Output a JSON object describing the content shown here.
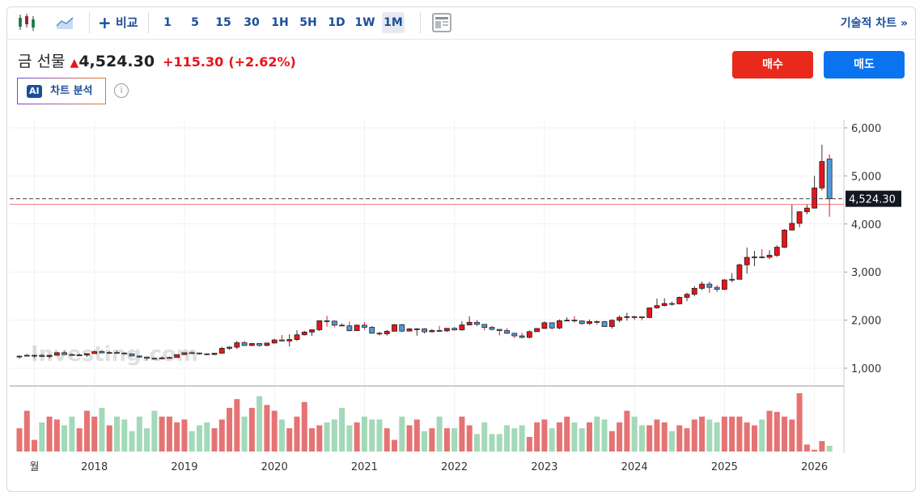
{
  "toolbar": {
    "compare": "비교",
    "intervals": [
      "1",
      "5",
      "15",
      "30",
      "1H",
      "5H",
      "1D",
      "1W",
      "1M"
    ],
    "active_interval": 8,
    "technical": "기술적 차트 »"
  },
  "header": {
    "name": "금 선물",
    "price": "4,524.30",
    "change": "+115.30",
    "change_pct": "(+2.62%)",
    "ai_badge": "AI",
    "ai_label": "차트 분석",
    "buy": "매수",
    "sell": "매도"
  },
  "chart_data": {
    "type": "candlestick",
    "watermark": "Investing.com",
    "up_color": "#e8141c",
    "down_color": "#4f9bd6",
    "volume_up_color": "#e57373",
    "volume_down_color": "#a3d9b8",
    "ylim": [
      646,
      6168
    ],
    "yticks": [
      {
        "value": 1000,
        "label": "1,000"
      },
      {
        "value": 2000,
        "label": "2,000"
      },
      {
        "value": 3000,
        "label": "3,000"
      },
      {
        "value": 4000,
        "label": "4,000"
      },
      {
        "value": 5000,
        "label": "5,000"
      },
      {
        "value": 6000,
        "label": "6,000"
      }
    ],
    "xticks": [
      {
        "value": 2,
        "label": "월"
      },
      {
        "value": 10,
        "label": "2018"
      },
      {
        "value": 22,
        "label": "2019"
      },
      {
        "value": 34,
        "label": "2020"
      },
      {
        "value": 46,
        "label": "2021"
      },
      {
        "value": 58,
        "label": "2022"
      },
      {
        "value": 70,
        "label": "2023"
      },
      {
        "value": 82,
        "label": "2024"
      },
      {
        "value": 94,
        "label": "2025"
      },
      {
        "value": 106,
        "label": "2026"
      }
    ],
    "last_price": {
      "value": 4524.3,
      "label": "4,524.30"
    },
    "previous_close": 4409,
    "candles": [
      [
        1248,
        1265,
        1195,
        1250
      ],
      [
        1250,
        1295,
        1245,
        1268
      ],
      [
        1268,
        1272,
        1215,
        1268
      ],
      [
        1268,
        1296,
        1238,
        1242
      ],
      [
        1242,
        1274,
        1205,
        1269
      ],
      [
        1269,
        1331,
        1261,
        1322
      ],
      [
        1322,
        1358,
        1275,
        1283
      ],
      [
        1283,
        1308,
        1262,
        1271
      ],
      [
        1271,
        1299,
        1264,
        1275
      ],
      [
        1275,
        1310,
        1238,
        1303
      ],
      [
        1303,
        1366,
        1303,
        1343
      ],
      [
        1343,
        1365,
        1307,
        1318
      ],
      [
        1318,
        1356,
        1303,
        1325
      ],
      [
        1325,
        1369,
        1314,
        1315
      ],
      [
        1315,
        1326,
        1282,
        1298
      ],
      [
        1298,
        1309,
        1251,
        1253
      ],
      [
        1253,
        1266,
        1211,
        1232
      ],
      [
        1232,
        1237,
        1160,
        1206
      ],
      [
        1206,
        1214,
        1180,
        1196
      ],
      [
        1196,
        1243,
        1182,
        1215
      ],
      [
        1215,
        1241,
        1196,
        1222
      ],
      [
        1222,
        1285,
        1221,
        1282
      ],
      [
        1282,
        1326,
        1277,
        1321
      ],
      [
        1321,
        1349,
        1311,
        1316
      ],
      [
        1316,
        1326,
        1281,
        1298
      ],
      [
        1298,
        1310,
        1267,
        1285
      ],
      [
        1285,
        1311,
        1268,
        1311
      ],
      [
        1311,
        1442,
        1306,
        1413
      ],
      [
        1413,
        1453,
        1381,
        1437
      ],
      [
        1437,
        1566,
        1400,
        1529
      ],
      [
        1529,
        1566,
        1465,
        1472
      ],
      [
        1472,
        1519,
        1459,
        1513
      ],
      [
        1513,
        1516,
        1445,
        1473
      ],
      [
        1473,
        1525,
        1454,
        1523
      ],
      [
        1523,
        1613,
        1517,
        1587
      ],
      [
        1587,
        1691,
        1563,
        1566
      ],
      [
        1566,
        1704,
        1451,
        1596
      ],
      [
        1596,
        1788,
        1567,
        1694
      ],
      [
        1694,
        1775,
        1680,
        1751
      ],
      [
        1751,
        1796,
        1671,
        1800
      ],
      [
        1800,
        1992,
        1772,
        1986
      ],
      [
        1986,
        2089,
        1863,
        1978
      ],
      [
        1978,
        1992,
        1849,
        1895
      ],
      [
        1895,
        1933,
        1873,
        1880
      ],
      [
        1880,
        1966,
        1764,
        1780
      ],
      [
        1780,
        1907,
        1776,
        1895
      ],
      [
        1895,
        1959,
        1802,
        1850
      ],
      [
        1850,
        1875,
        1717,
        1728
      ],
      [
        1728,
        1755,
        1677,
        1715
      ],
      [
        1715,
        1797,
        1679,
        1768
      ],
      [
        1768,
        1917,
        1766,
        1905
      ],
      [
        1905,
        1919,
        1750,
        1771
      ],
      [
        1771,
        1835,
        1766,
        1817
      ],
      [
        1817,
        1834,
        1677,
        1818
      ],
      [
        1818,
        1836,
        1721,
        1757
      ],
      [
        1757,
        1813,
        1746,
        1784
      ],
      [
        1784,
        1878,
        1759,
        1776
      ],
      [
        1776,
        1832,
        1753,
        1829
      ],
      [
        1829,
        1856,
        1781,
        1796
      ],
      [
        1796,
        1976,
        1780,
        1900
      ],
      [
        1900,
        2078,
        1890,
        1954
      ],
      [
        1954,
        2003,
        1872,
        1911
      ],
      [
        1911,
        1916,
        1786,
        1848
      ],
      [
        1848,
        1880,
        1785,
        1807
      ],
      [
        1807,
        1814,
        1681,
        1782
      ],
      [
        1782,
        1832,
        1712,
        1726
      ],
      [
        1726,
        1735,
        1626,
        1672
      ],
      [
        1672,
        1734,
        1618,
        1640
      ],
      [
        1640,
        1787,
        1618,
        1759
      ],
      [
        1759,
        1834,
        1756,
        1826
      ],
      [
        1826,
        1976,
        1823,
        1945
      ],
      [
        1945,
        1952,
        1809,
        1836
      ],
      [
        1836,
        2014,
        1810,
        1986
      ],
      [
        1986,
        2058,
        1972,
        1999
      ],
      [
        1999,
        2085,
        1946,
        1982
      ],
      [
        1982,
        1990,
        1900,
        1929
      ],
      [
        1929,
        2011,
        1903,
        1970
      ],
      [
        1970,
        1992,
        1904,
        1966
      ],
      [
        1966,
        1984,
        1859,
        1866
      ],
      [
        1866,
        2019,
        1823,
        1996
      ],
      [
        1996,
        2095,
        1953,
        2057
      ],
      [
        2057,
        2152,
        1987,
        2071
      ],
      [
        2071,
        2089,
        2004,
        2067
      ],
      [
        2067,
        2070,
        1996,
        2054
      ],
      [
        2054,
        2259,
        2039,
        2254
      ],
      [
        2254,
        2448,
        2241,
        2302
      ],
      [
        2302,
        2454,
        2285,
        2345
      ],
      [
        2345,
        2389,
        2298,
        2339
      ],
      [
        2339,
        2490,
        2327,
        2473
      ],
      [
        2473,
        2570,
        2393,
        2537
      ],
      [
        2537,
        2708,
        2499,
        2660
      ],
      [
        2660,
        2801,
        2624,
        2749
      ],
      [
        2749,
        2801,
        2564,
        2681
      ],
      [
        2681,
        2726,
        2583,
        2641
      ],
      [
        2641,
        2853,
        2625,
        2835
      ],
      [
        2835,
        2974,
        2793,
        2848
      ],
      [
        2848,
        3177,
        2845,
        3150
      ],
      [
        3150,
        3509,
        2970,
        3305
      ],
      [
        3305,
        3439,
        3121,
        3315
      ],
      [
        3315,
        3476,
        3282,
        3307
      ],
      [
        3307,
        3451,
        3268,
        3348
      ],
      [
        3348,
        3557,
        3314,
        3516
      ],
      [
        3516,
        3892,
        3500,
        3873
      ],
      [
        3873,
        4398,
        3872,
        4013
      ],
      [
        4013,
        4256,
        3932,
        4254
      ],
      [
        4254,
        4400,
        4200,
        4330
      ],
      [
        4330,
        5000,
        4320,
        4750
      ],
      [
        4750,
        5650,
        4700,
        5300
      ],
      [
        5350,
        5450,
        4150,
        4524.3
      ]
    ],
    "volume": [
      40,
      70,
      20,
      50,
      60,
      55,
      45,
      60,
      40,
      70,
      60,
      75,
      45,
      60,
      55,
      35,
      60,
      40,
      70,
      60,
      60,
      50,
      55,
      35,
      45,
      50,
      40,
      55,
      75,
      90,
      60,
      75,
      95,
      80,
      70,
      55,
      40,
      60,
      85,
      40,
      45,
      50,
      55,
      75,
      45,
      50,
      60,
      55,
      55,
      40,
      20,
      60,
      45,
      55,
      35,
      40,
      60,
      40,
      40,
      60,
      45,
      30,
      50,
      30,
      30,
      45,
      40,
      45,
      25,
      50,
      55,
      40,
      50,
      60,
      50,
      40,
      50,
      60,
      55,
      35,
      50,
      70,
      60,
      45,
      45,
      55,
      50,
      35,
      45,
      40,
      55,
      60,
      55,
      50,
      60,
      60,
      60,
      50,
      45,
      55,
      70,
      68,
      60,
      55,
      100,
      12,
      3,
      18,
      10
    ]
  }
}
